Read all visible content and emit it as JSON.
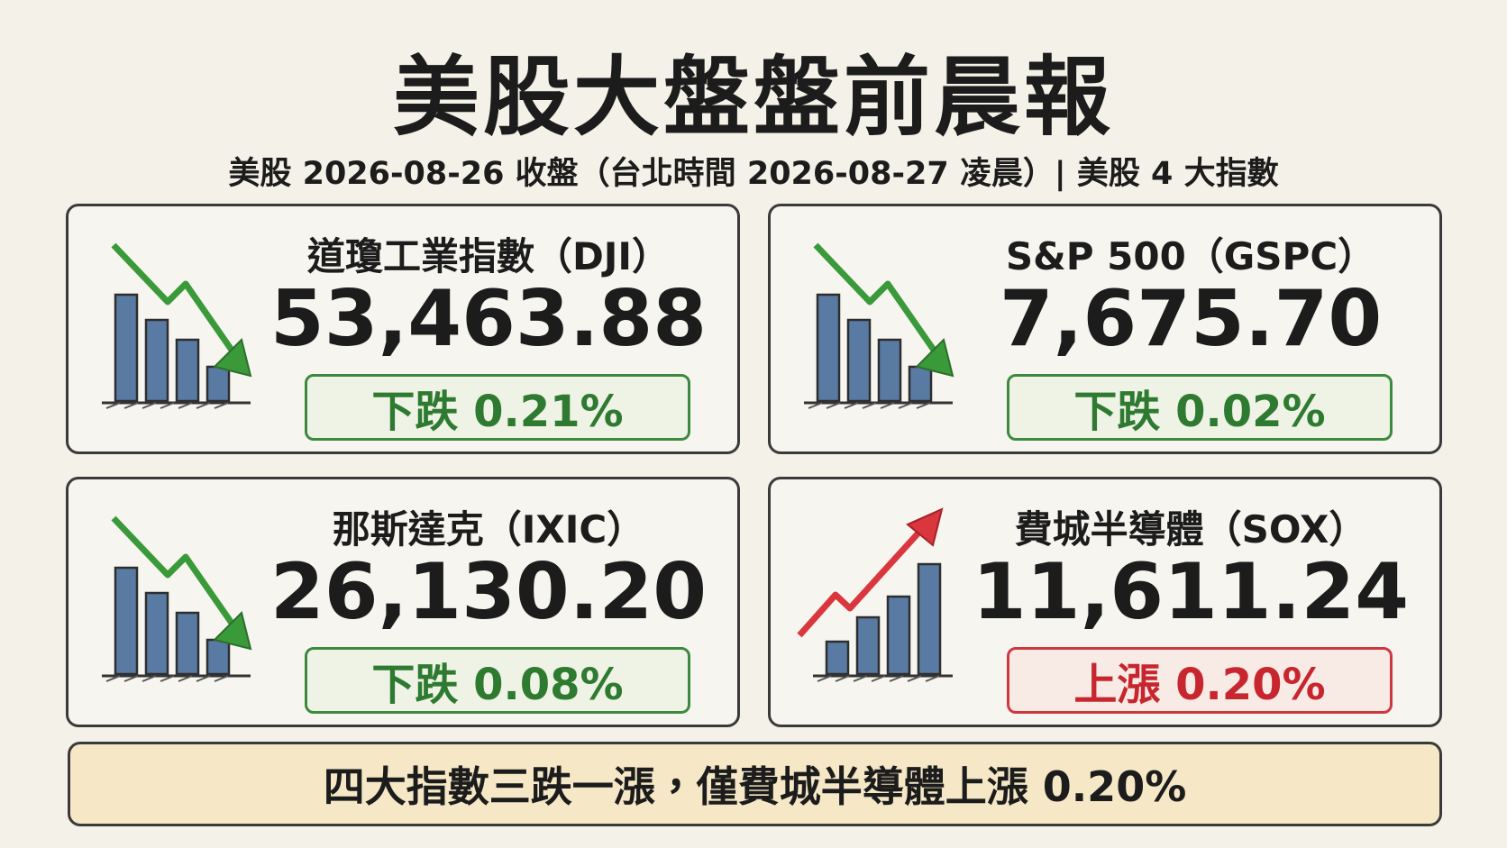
{
  "header": {
    "title": "美股大盤盤前晨報",
    "subtitle": "美股 2026-08-26 收盤（台北時間 2026-08-27 凌晨）| 美股 4 大指數"
  },
  "cards": [
    {
      "name": "道瓊工業指數（DJI）",
      "value": "53,463.88",
      "change": "下跌 0.21%",
      "direction": "down"
    },
    {
      "name": "S&P 500（GSPC）",
      "value": "7,675.70",
      "change": "下跌 0.02%",
      "direction": "down"
    },
    {
      "name": "那斯達克（IXIC）",
      "value": "26,130.20",
      "change": "下跌 0.08%",
      "direction": "down"
    },
    {
      "name": "費城半導體（SOX）",
      "value": "11,611.24",
      "change": "上漲 0.20%",
      "direction": "up"
    }
  ],
  "summary": "四大指數三跌一漲，僅費城半導體上漲 0.20%"
}
